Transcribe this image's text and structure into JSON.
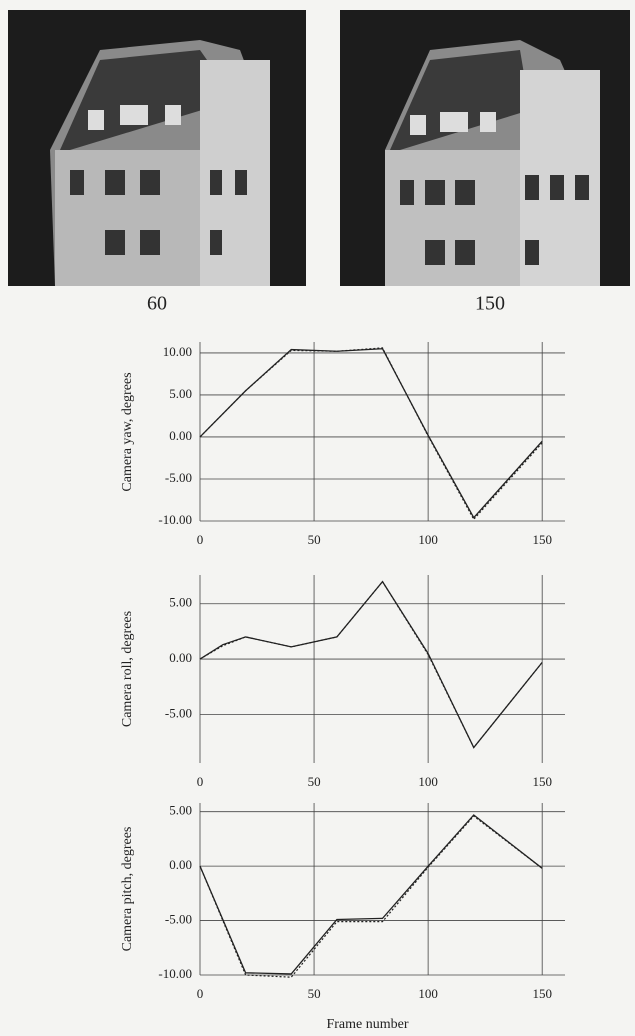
{
  "images": [
    {
      "label": "60"
    },
    {
      "label": "150"
    }
  ],
  "chart_data": [
    {
      "type": "line",
      "y_label": "Camera yaw, degrees",
      "xlim": [
        0,
        160
      ],
      "xticks": [
        0,
        50,
        100,
        150
      ],
      "ylim": [
        -10,
        11.3
      ],
      "yticks": [
        {
          "value": -10,
          "label": "-10.00"
        },
        {
          "value": -5,
          "label": "-5.00"
        },
        {
          "value": 0,
          "label": "0.00"
        },
        {
          "value": 5,
          "label": "5.00"
        },
        {
          "value": 10,
          "label": "10.00"
        }
      ],
      "grid": true,
      "series": [
        {
          "color": "#222222",
          "style": "solid",
          "x": [
            0,
            20,
            40,
            60,
            80,
            100,
            120,
            150
          ],
          "values": [
            0,
            5.5,
            10.4,
            10.2,
            10.5,
            0.2,
            -9.6,
            -0.5
          ]
        },
        {
          "color": "#222222",
          "style": "dotted",
          "x": [
            0,
            20,
            40,
            60,
            80,
            100,
            120,
            150
          ],
          "values": [
            0,
            5.5,
            10.3,
            10.2,
            10.6,
            0.1,
            -9.8,
            -0.7
          ]
        }
      ]
    },
    {
      "type": "line",
      "y_label": "Camera roll, degrees",
      "xlim": [
        0,
        160
      ],
      "xticks": [
        0,
        50,
        100,
        150
      ],
      "ylim": [
        -9.4,
        7.6
      ],
      "yticks": [
        {
          "value": -5,
          "label": "-5.00"
        },
        {
          "value": 0,
          "label": "0.00"
        },
        {
          "value": 5,
          "label": "5.00"
        }
      ],
      "grid": true,
      "series": [
        {
          "color": "#222222",
          "style": "solid",
          "x": [
            0,
            10,
            20,
            40,
            60,
            80,
            100,
            120,
            150
          ],
          "values": [
            0,
            1.3,
            2,
            1.1,
            2,
            7,
            0.5,
            -8,
            -0.3
          ]
        },
        {
          "color": "#222222",
          "style": "dotted",
          "x": [
            0,
            10,
            20,
            40,
            60,
            80,
            100,
            120,
            150
          ],
          "values": [
            0,
            1.2,
            2,
            1.1,
            2,
            7,
            0.4,
            -8,
            -0.3
          ]
        }
      ]
    },
    {
      "type": "line",
      "y_label": "Camera pitch, degrees",
      "x_label": "Frame number",
      "xlim": [
        0,
        160
      ],
      "xticks": [
        0,
        50,
        100,
        150
      ],
      "ylim": [
        -10,
        5.8
      ],
      "yticks": [
        {
          "value": -10,
          "label": "-10.00"
        },
        {
          "value": -5,
          "label": "-5.00"
        },
        {
          "value": 0,
          "label": "0.00"
        },
        {
          "value": 5,
          "label": "5.00"
        }
      ],
      "grid": true,
      "series": [
        {
          "color": "#222222",
          "style": "solid",
          "x": [
            0,
            20,
            40,
            60,
            80,
            100,
            120,
            150
          ],
          "values": [
            0,
            -9.8,
            -9.9,
            -4.9,
            -4.8,
            0,
            4.7,
            -0.2
          ]
        },
        {
          "color": "#222222",
          "style": "dotted",
          "x": [
            0,
            20,
            40,
            60,
            80,
            100,
            120,
            150
          ],
          "values": [
            0,
            -10,
            -10.2,
            -5.1,
            -5.1,
            -0.1,
            4.6,
            -0.2
          ]
        }
      ]
    }
  ]
}
